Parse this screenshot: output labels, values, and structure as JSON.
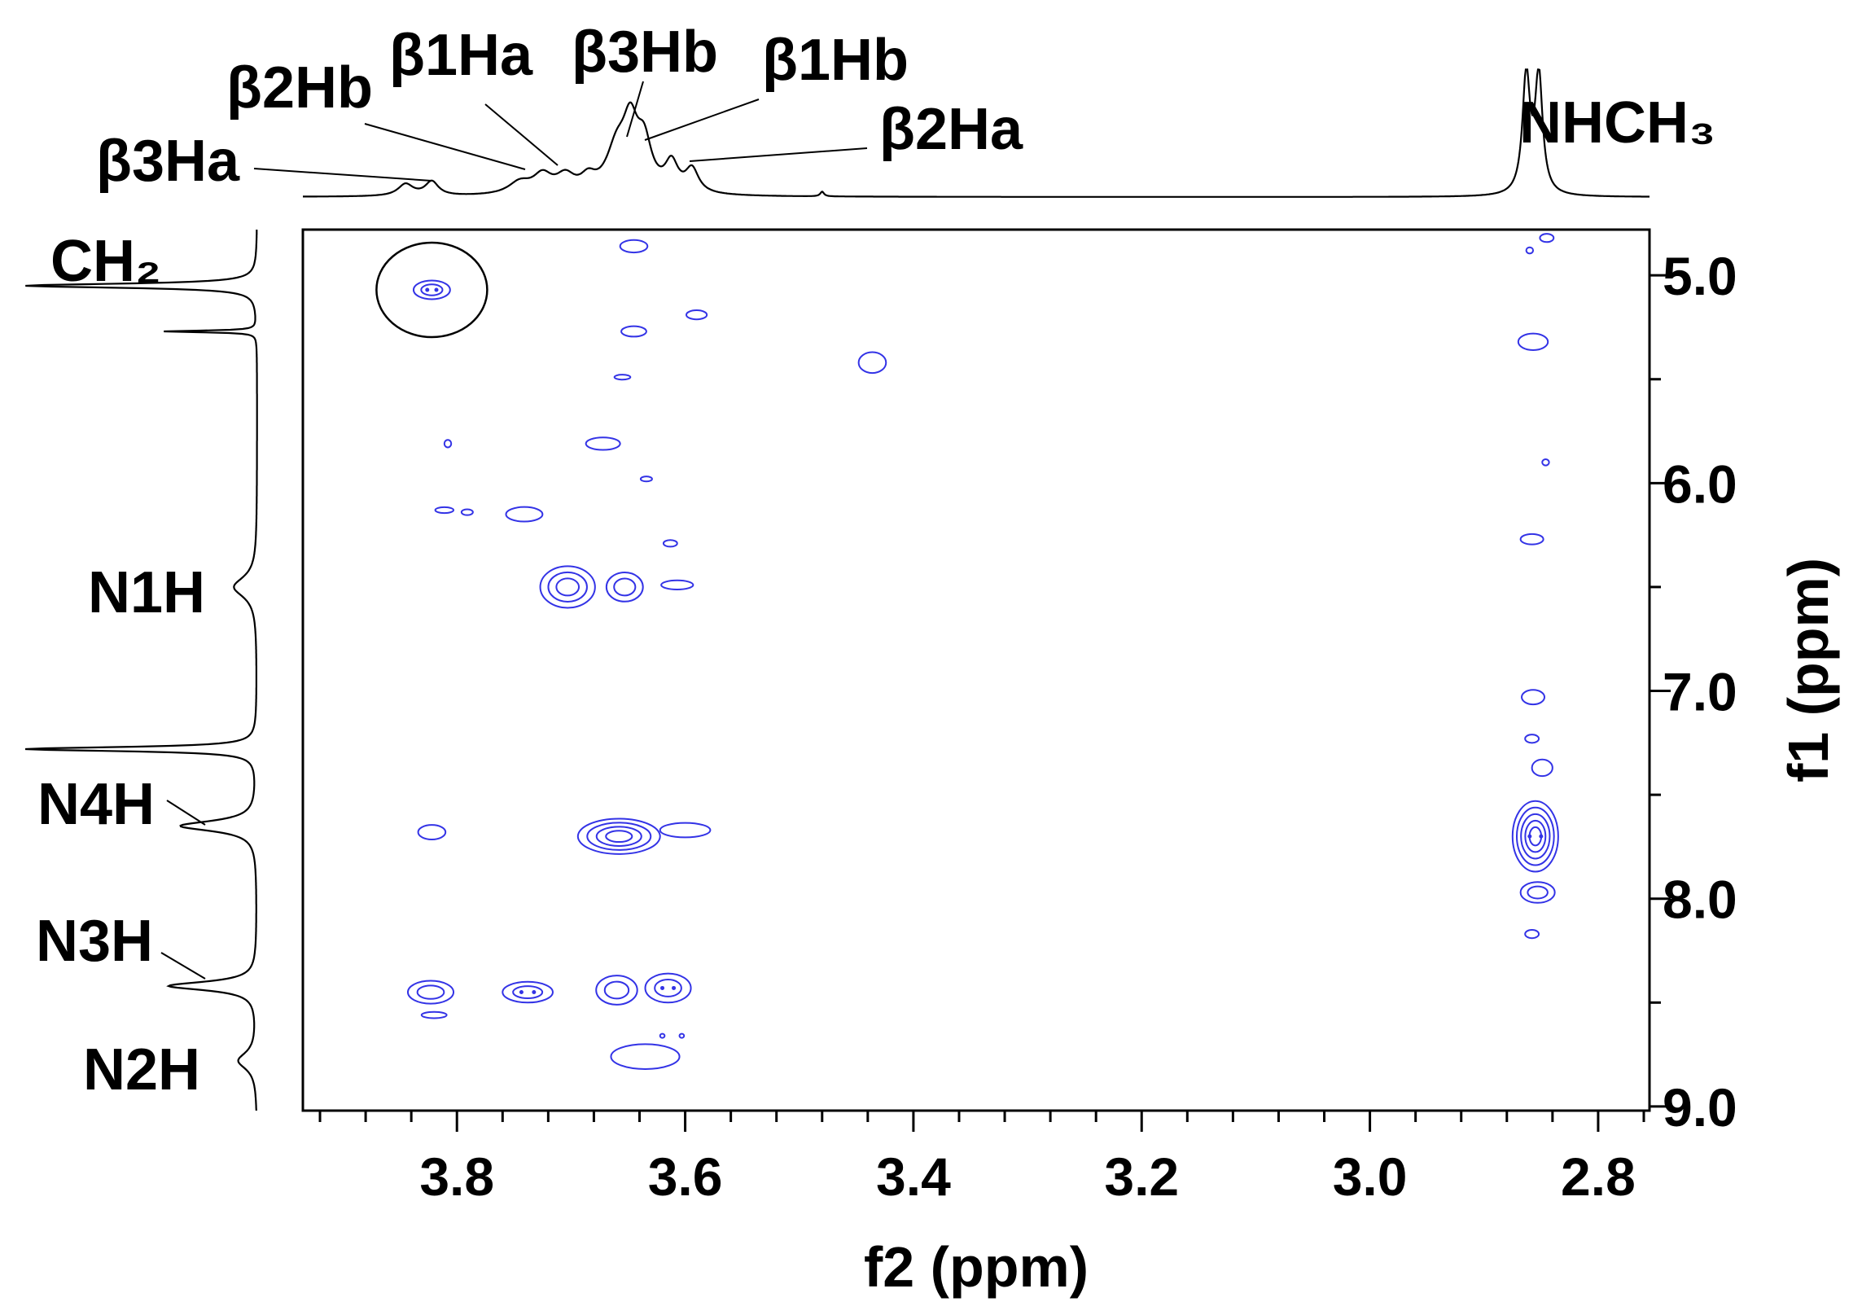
{
  "chart_data": {
    "type": "contour",
    "x_axis": {
      "label": "f2 (ppm)",
      "range": [
        3.935,
        2.755
      ],
      "ticks": [
        3.8,
        3.6,
        3.4,
        3.2,
        3.0,
        2.8
      ],
      "tick_labels": [
        "3.8",
        "3.6",
        "3.4",
        "3.2",
        "3.0",
        "2.8"
      ],
      "minor_step": 0.04,
      "reversed": true
    },
    "y_axis": {
      "label": "f1 (ppm)",
      "range": [
        4.78,
        9.02
      ],
      "ticks": [
        5.0,
        6.0,
        7.0,
        8.0,
        9.0
      ],
      "tick_labels": [
        "5.0",
        "6.0",
        "7.0",
        "8.0",
        "9.0"
      ],
      "minor_step": 0.5,
      "reversed": true,
      "position": "right"
    },
    "top_spectrum_labels": [
      {
        "text": "β3Ha",
        "ppm": 3.84
      },
      {
        "text": "β2Hb",
        "ppm": 3.735
      },
      {
        "text": "β1Ha",
        "ppm": 3.695
      },
      {
        "text": "β3Hb",
        "ppm": 3.646
      },
      {
        "text": "β1Hb",
        "ppm": 3.625
      },
      {
        "text": "β2Ha",
        "ppm": 3.596
      },
      {
        "text": "NHCH₃",
        "ppm": 2.86
      }
    ],
    "left_spectrum_labels": [
      {
        "text": "CH₂",
        "ppm": 5.06
      },
      {
        "text": "N1H",
        "ppm": 6.5
      },
      {
        "text": "N4H",
        "ppm": 7.6
      },
      {
        "text": "N3H",
        "ppm": 8.4
      },
      {
        "text": "N2H",
        "ppm": 8.85
      }
    ],
    "contour_color": "#3333e6",
    "circled_peak": {
      "x": 3.822,
      "y": 5.07
    },
    "cross_peaks": [
      {
        "x": 3.822,
        "y": 5.07,
        "rx": 0.016,
        "ry": 0.045,
        "levels": 2,
        "dots": true
      },
      {
        "x": 3.645,
        "y": 4.86,
        "rx": 0.012,
        "ry": 0.03,
        "levels": 1
      },
      {
        "x": 3.645,
        "y": 5.27,
        "rx": 0.011,
        "ry": 0.025,
        "levels": 1
      },
      {
        "x": 3.59,
        "y": 5.19,
        "rx": 0.009,
        "ry": 0.022,
        "levels": 1
      },
      {
        "x": 3.655,
        "y": 5.49,
        "rx": 0.007,
        "ry": 0.012,
        "levels": 1
      },
      {
        "x": 3.436,
        "y": 5.42,
        "rx": 0.012,
        "ry": 0.05,
        "levels": 1
      },
      {
        "x": 3.672,
        "y": 5.81,
        "rx": 0.015,
        "ry": 0.03,
        "levels": 1
      },
      {
        "x": 3.808,
        "y": 5.81,
        "rx": 0.003,
        "ry": 0.018,
        "levels": 1
      },
      {
        "x": 3.634,
        "y": 5.98,
        "rx": 0.005,
        "ry": 0.012,
        "levels": 1
      },
      {
        "x": 3.811,
        "y": 6.13,
        "rx": 0.008,
        "ry": 0.014,
        "levels": 1
      },
      {
        "x": 3.791,
        "y": 6.14,
        "rx": 0.005,
        "ry": 0.014,
        "levels": 1
      },
      {
        "x": 3.741,
        "y": 6.15,
        "rx": 0.016,
        "ry": 0.035,
        "levels": 1
      },
      {
        "x": 3.613,
        "y": 6.29,
        "rx": 0.006,
        "ry": 0.016,
        "levels": 1
      },
      {
        "x": 3.703,
        "y": 6.5,
        "rx": 0.024,
        "ry": 0.1,
        "levels": 3
      },
      {
        "x": 3.653,
        "y": 6.5,
        "rx": 0.016,
        "ry": 0.07,
        "levels": 2
      },
      {
        "x": 3.607,
        "y": 6.49,
        "rx": 0.014,
        "ry": 0.022,
        "levels": 1
      },
      {
        "x": 3.822,
        "y": 7.68,
        "rx": 0.012,
        "ry": 0.035,
        "levels": 1
      },
      {
        "x": 3.658,
        "y": 7.7,
        "rx": 0.036,
        "ry": 0.085,
        "levels": 4
      },
      {
        "x": 3.6,
        "y": 7.67,
        "rx": 0.022,
        "ry": 0.035,
        "levels": 1
      },
      {
        "x": 3.823,
        "y": 8.45,
        "rx": 0.02,
        "ry": 0.055,
        "levels": 2
      },
      {
        "x": 3.82,
        "y": 8.56,
        "rx": 0.011,
        "ry": 0.015,
        "levels": 1
      },
      {
        "x": 3.738,
        "y": 8.45,
        "rx": 0.022,
        "ry": 0.05,
        "levels": 2,
        "dots": true
      },
      {
        "x": 3.66,
        "y": 8.44,
        "rx": 0.018,
        "ry": 0.07,
        "levels": 2
      },
      {
        "x": 3.615,
        "y": 8.43,
        "rx": 0.02,
        "ry": 0.07,
        "levels": 2,
        "dots": true
      },
      {
        "x": 3.635,
        "y": 8.76,
        "rx": 0.03,
        "ry": 0.06,
        "levels": 1
      },
      {
        "x": 2.845,
        "y": 4.82,
        "rx": 0.006,
        "ry": 0.02,
        "levels": 1
      },
      {
        "x": 2.86,
        "y": 4.88,
        "rx": 0.003,
        "ry": 0.015,
        "levels": 1
      },
      {
        "x": 2.857,
        "y": 5.32,
        "rx": 0.013,
        "ry": 0.04,
        "levels": 1
      },
      {
        "x": 2.846,
        "y": 5.9,
        "rx": 0.003,
        "ry": 0.015,
        "levels": 1
      },
      {
        "x": 2.858,
        "y": 6.27,
        "rx": 0.01,
        "ry": 0.025,
        "levels": 1
      },
      {
        "x": 2.857,
        "y": 7.03,
        "rx": 0.01,
        "ry": 0.035,
        "levels": 1
      },
      {
        "x": 2.858,
        "y": 7.23,
        "rx": 0.006,
        "ry": 0.02,
        "levels": 1
      },
      {
        "x": 2.849,
        "y": 7.37,
        "rx": 0.009,
        "ry": 0.04,
        "levels": 1
      },
      {
        "x": 2.855,
        "y": 7.7,
        "rx": 0.02,
        "ry": 0.17,
        "levels": 5,
        "dots": true
      },
      {
        "x": 2.853,
        "y": 7.97,
        "rx": 0.015,
        "ry": 0.05,
        "levels": 2
      },
      {
        "x": 2.858,
        "y": 8.17,
        "rx": 0.006,
        "ry": 0.02,
        "levels": 1
      },
      {
        "x": 3.62,
        "y": 8.66,
        "rx": 0.002,
        "ry": 0.01,
        "levels": 1
      },
      {
        "x": 3.603,
        "y": 8.66,
        "rx": 0.002,
        "ry": 0.01,
        "levels": 1
      }
    ],
    "top_projection_peaks": [
      {
        "x": 3.845,
        "h": 0.1,
        "w": 0.008
      },
      {
        "x": 3.822,
        "h": 0.12,
        "w": 0.007
      },
      {
        "x": 3.745,
        "h": 0.1,
        "w": 0.012
      },
      {
        "x": 3.725,
        "h": 0.15,
        "w": 0.01
      },
      {
        "x": 3.705,
        "h": 0.14,
        "w": 0.01
      },
      {
        "x": 3.685,
        "h": 0.11,
        "w": 0.008
      },
      {
        "x": 3.66,
        "h": 0.35,
        "w": 0.011
      },
      {
        "x": 3.648,
        "h": 0.5,
        "w": 0.008
      },
      {
        "x": 3.636,
        "h": 0.38,
        "w": 0.008
      },
      {
        "x": 3.612,
        "h": 0.24,
        "w": 0.007
      },
      {
        "x": 3.594,
        "h": 0.2,
        "w": 0.007
      },
      {
        "x": 3.48,
        "h": 0.04,
        "w": 0.002
      },
      {
        "x": 2.863,
        "h": 1.0,
        "w": 0.004
      },
      {
        "x": 2.852,
        "h": 1.0,
        "w": 0.004
      }
    ],
    "left_projection_peaks": [
      {
        "y": 5.05,
        "h": 1.0,
        "w": 0.012
      },
      {
        "y": 5.27,
        "h": 0.4,
        "w": 0.005
      },
      {
        "y": 6.5,
        "h": 0.1,
        "w": 0.06
      },
      {
        "y": 7.28,
        "h": 1.0,
        "w": 0.012
      },
      {
        "y": 7.65,
        "h": 0.33,
        "w": 0.03
      },
      {
        "y": 8.42,
        "h": 0.38,
        "w": 0.025
      },
      {
        "y": 8.78,
        "h": 0.08,
        "w": 0.05
      }
    ]
  }
}
